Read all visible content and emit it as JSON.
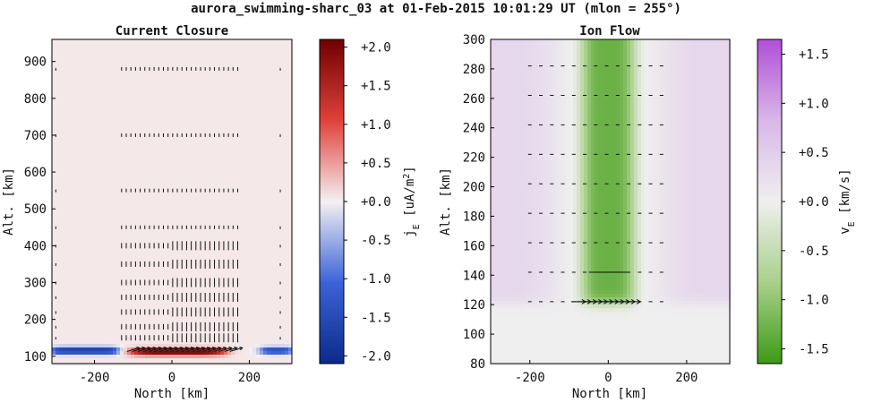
{
  "figure": {
    "suptitle": "aurora_swimming-sharc_03 at 01-Feb-2015 10:01:29 UT (mlon = 255°)"
  },
  "chart_data": [
    {
      "type": "heatmap",
      "title": "Current Closure",
      "xlabel": "North [km]",
      "ylabel": "Alt. [km]",
      "xlim": [
        -310,
        310
      ],
      "ylim": [
        80,
        960
      ],
      "xticks": [
        -200,
        0,
        200
      ],
      "xtick_labels": [
        "-200",
        "0",
        "200"
      ],
      "yticks": [
        100,
        200,
        300,
        400,
        500,
        600,
        700,
        800,
        900
      ],
      "ytick_labels": [
        "100",
        "200",
        "300",
        "400",
        "500",
        "600",
        "700",
        "800",
        "900"
      ],
      "background_value": 0.05,
      "features": [
        {
          "kind": "downward current sheet",
          "x_range": [
            -310,
            -140
          ],
          "altitude_km": 115,
          "value": -1.9
        },
        {
          "kind": "downward current sheet",
          "x_range": [
            230,
            310
          ],
          "altitude_km": 115,
          "value": -1.6
        },
        {
          "kind": "upward current blob",
          "x_center": 15,
          "x_halfwidth": 125,
          "altitude_km": 112,
          "value": 2.0
        }
      ],
      "quiver_note": "current density arrows, small vertical arrows above the sheet, horizontal arrows inside it",
      "colorbar": {
        "label": "j_E [uA/m^2]",
        "min": -2.1,
        "max": 2.1,
        "ticks": [
          2.0,
          1.5,
          1.0,
          0.5,
          0.0,
          -0.5,
          -1.0,
          -1.5,
          -2.0
        ],
        "tick_labels": [
          "+2.0",
          "+1.5",
          "+1.0",
          "+0.5",
          "+0.0",
          "-0.5",
          "-1.0",
          "-1.5",
          "-2.0"
        ],
        "colormap": "blue-white-red",
        "colors": [
          "#0b2a8a",
          "#3b63d8",
          "#f5f0f2",
          "#e0413a",
          "#6e0000"
        ]
      }
    },
    {
      "type": "heatmap",
      "title": "Ion Flow",
      "xlabel": "North [km]",
      "ylabel": "Alt. [km]",
      "xlim": [
        -300,
        310
      ],
      "ylim": [
        80,
        300
      ],
      "xticks": [
        -200,
        0,
        200
      ],
      "xtick_labels": [
        "-200",
        "0",
        "200"
      ],
      "yticks": [
        80,
        100,
        120,
        140,
        160,
        180,
        200,
        220,
        240,
        260,
        280,
        300
      ],
      "ytick_labels": [
        "80",
        "100",
        "120",
        "140",
        "160",
        "180",
        "200",
        "220",
        "240",
        "260",
        "280",
        "300"
      ],
      "features": [
        {
          "kind": "westward flow channel",
          "x_center": 0,
          "x_halfwidth": 70,
          "min_altitude_km": 120,
          "value": -1.3
        },
        {
          "kind": "eastward background",
          "altitude_above_km": 125,
          "value": 0.35
        },
        {
          "kind": "neutral below E region",
          "altitude_below_km": 118,
          "value": 0.0
        }
      ],
      "quiver_note": "flow arrows along rows every 20 km; large arrows near 122 km inside the channel",
      "colorbar": {
        "label": "v_E [km/s]",
        "min": -1.65,
        "max": 1.65,
        "ticks": [
          1.5,
          1.0,
          0.5,
          0.0,
          -0.5,
          -1.0,
          -1.5
        ],
        "tick_labels": [
          "+1.5",
          "+1.0",
          "+0.5",
          "+0.0",
          "-0.5",
          "-1.0",
          "-1.5"
        ],
        "colormap": "green-white-purple",
        "colors": [
          "#3d9a14",
          "#a9d08b",
          "#efefef",
          "#d9b7e8",
          "#b04fd8"
        ]
      }
    }
  ]
}
